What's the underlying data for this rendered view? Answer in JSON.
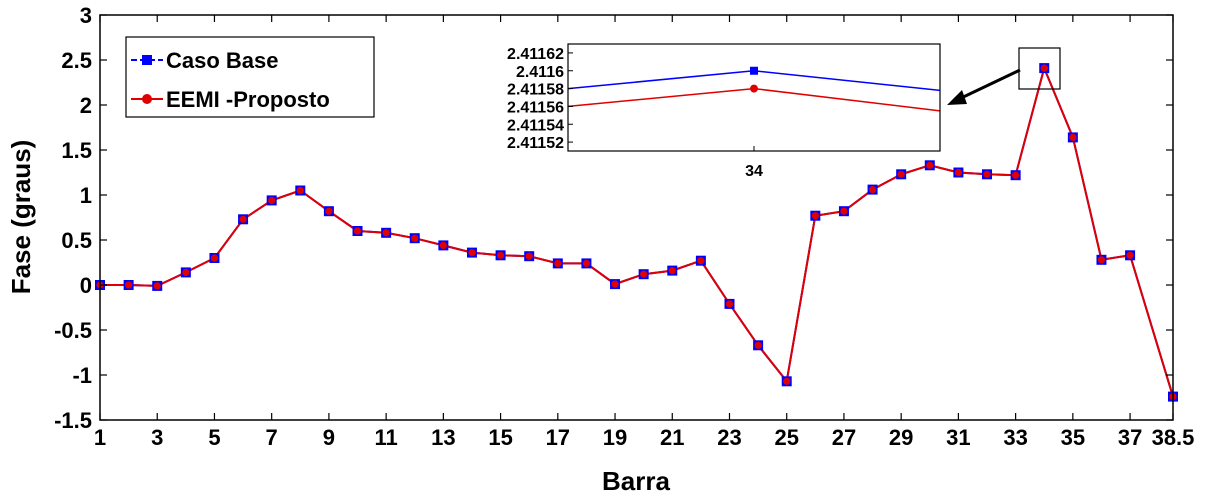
{
  "chart_data": {
    "type": "line",
    "xlabel": "Barra",
    "ylabel": "Fase (graus)",
    "xlim": [
      1,
      38.5
    ],
    "ylim": [
      -1.5,
      3
    ],
    "x_ticks": [
      "1",
      "3",
      "5",
      "7",
      "9",
      "11",
      "13",
      "15",
      "17",
      "19",
      "21",
      "23",
      "25",
      "27",
      "29",
      "31",
      "33",
      "35",
      "37",
      "38.5"
    ],
    "x_tick_values": [
      1,
      3,
      5,
      7,
      9,
      11,
      13,
      15,
      17,
      19,
      21,
      23,
      25,
      27,
      29,
      31,
      33,
      35,
      37,
      38.5
    ],
    "y_ticks": [
      "3",
      "2.5",
      "2",
      "1.5",
      "1",
      "0.5",
      "0",
      "-0.5",
      "-1",
      "-1.5"
    ],
    "y_tick_values": [
      3,
      2.5,
      2,
      1.5,
      1,
      0.5,
      0,
      -0.5,
      -1,
      -1.5
    ],
    "grid": false,
    "legend_position": "top-left",
    "x": [
      1,
      2,
      3,
      4,
      5,
      6,
      7,
      8,
      9,
      10,
      11,
      12,
      13,
      14,
      15,
      16,
      17,
      18,
      19,
      20,
      21,
      22,
      23,
      24,
      25,
      26,
      27,
      28,
      29,
      30,
      31,
      32,
      33,
      34,
      35,
      36,
      37,
      38.5
    ],
    "series": [
      {
        "name": "Caso Base",
        "color": "#0000ff",
        "marker": "square",
        "values": [
          0.0,
          0.0,
          -0.01,
          0.14,
          0.3,
          0.73,
          0.94,
          1.05,
          0.82,
          0.6,
          0.58,
          0.52,
          0.44,
          0.36,
          0.33,
          0.32,
          0.24,
          0.24,
          0.01,
          0.12,
          0.16,
          0.27,
          -0.21,
          -0.67,
          -1.07,
          0.77,
          0.82,
          1.06,
          1.23,
          1.33,
          1.25,
          1.23,
          1.22,
          2.41,
          1.64,
          0.28,
          0.33,
          -1.24
        ]
      },
      {
        "name": "EEMI -Proposto",
        "color": "#e00000",
        "marker": "circle",
        "values": [
          0.0,
          0.0,
          -0.01,
          0.14,
          0.3,
          0.73,
          0.94,
          1.05,
          0.82,
          0.6,
          0.58,
          0.52,
          0.44,
          0.36,
          0.33,
          0.32,
          0.24,
          0.24,
          0.01,
          0.12,
          0.16,
          0.27,
          -0.21,
          -0.67,
          -1.07,
          0.77,
          0.82,
          1.06,
          1.23,
          1.33,
          1.25,
          1.23,
          1.22,
          2.41,
          1.64,
          0.28,
          0.33,
          -1.24
        ]
      }
    ],
    "inset": {
      "x_ticks": [
        "34"
      ],
      "x_tick_values": [
        34
      ],
      "xlim": [
        33.5,
        34.5
      ],
      "y_ticks": [
        "2.41162",
        "2.4116",
        "2.41158",
        "2.41156",
        "2.41154",
        "2.41152"
      ],
      "y_tick_values": [
        2.41162,
        2.4116,
        2.41158,
        2.41156,
        2.41154,
        2.41152
      ],
      "ylim": [
        2.41151,
        2.41163
      ],
      "series": [
        {
          "name": "Caso Base",
          "color": "#0000ff",
          "x": [
            33.5,
            34,
            34.5
          ],
          "values": [
            2.41158,
            2.4116,
            2.411578
          ]
        },
        {
          "name": "EEMI -Proposto",
          "color": "#e00000",
          "x": [
            33.5,
            34,
            34.5
          ],
          "values": [
            2.41156,
            2.41158,
            2.411555
          ]
        }
      ]
    }
  }
}
